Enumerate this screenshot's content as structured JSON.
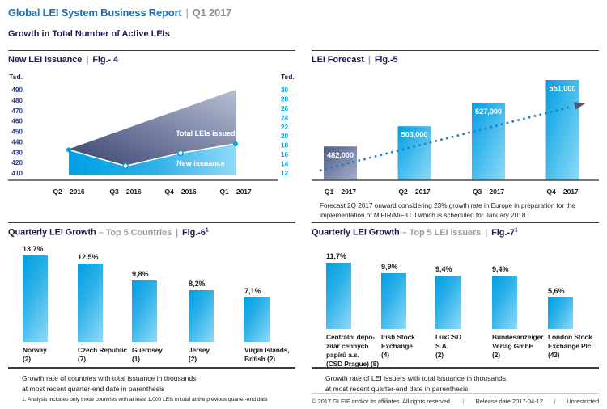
{
  "ui": {
    "pipe": "|"
  },
  "header": {
    "title": "Global LEI System Business Report",
    "period": "Q1 2017",
    "subtitle": "Growth in Total Number of Active LEIs"
  },
  "colors": {
    "brand_blue": "#1d71b8",
    "bright_blue": "#00a0e4",
    "navy": "#1b1b4e",
    "gray_label": "#9d9d9c",
    "dark_area_start": "#3a4371",
    "dark_area_end": "#b7bed4",
    "bar_gradient_start": "#009fe3",
    "bar_gradient_end": "#8edaf8"
  },
  "chart_data": [
    {
      "id": "fig4",
      "type": "area",
      "title": "New LEI Issuance",
      "fig_label": "Fig.- 4",
      "axis_unit_left": "Tsd.",
      "axis_unit_right": "Tsd.",
      "x": [
        "Q2 – 2016",
        "Q3 – 2016",
        "Q4 – 2016",
        "Q1 – 2017"
      ],
      "series": [
        {
          "name": "Total LEIs issued",
          "axis": "left",
          "values": [
            433,
            452,
            471,
            490
          ]
        },
        {
          "name": "New issuance",
          "axis": "right",
          "values": [
            17,
            13.5,
            16.3,
            18.3
          ]
        }
      ],
      "left_ticks": [
        490,
        480,
        470,
        460,
        450,
        440,
        430,
        420,
        410
      ],
      "right_ticks": [
        30,
        28,
        26,
        24,
        22,
        20,
        18,
        16,
        14,
        12
      ],
      "left_range": [
        410,
        490
      ],
      "right_range": [
        12,
        30
      ],
      "legend_position": "inside"
    },
    {
      "id": "fig5",
      "type": "bar",
      "title": "LEI Forecast",
      "fig_label": "Fig.-5",
      "categories": [
        "Q1 – 2017",
        "Q2 – 2017",
        "Q3 – 2017",
        "Q4 – 2017"
      ],
      "values": [
        482000,
        503000,
        527000,
        551000
      ],
      "value_labels": [
        "482,000",
        "503,000",
        "527,000",
        "551,000"
      ],
      "bar_styles": [
        "actual",
        "forecast",
        "forecast",
        "forecast"
      ],
      "trend_arrow": true,
      "ylim": [
        447000,
        551000
      ],
      "note": "Forecast 2Q 2017 onward considering 23% growth rate in Europe in preparation for the implementation of MiFIR/MiFID II which is scheduled for January 2018"
    },
    {
      "id": "fig6",
      "type": "bar",
      "title": "Quarterly LEI Growth",
      "subtitle": "– Top 5 Countries",
      "fig_label": "Fig.-6",
      "fig_sup": "1",
      "values": [
        13.7,
        12.5,
        9.8,
        8.2,
        7.1
      ],
      "value_labels": [
        "13,7%",
        "12,5%",
        "9,8%",
        "8,2%",
        "7,1%"
      ],
      "categories": [
        [
          "Norway",
          "(2)"
        ],
        [
          "Czech Republic",
          "(7)"
        ],
        [
          "Guernsey",
          "(1)"
        ],
        [
          "Jersey",
          "(2)"
        ],
        [
          "Virgin Islands,",
          "British (2)"
        ]
      ],
      "caption": "Growth rate of countries with total issuance in thousands\nat most recent quarter-end date in parenthesis",
      "footnote": "1. Analysis includes only those countries with at least 1,000 LEIs in total at the previous quarter-end date"
    },
    {
      "id": "fig7",
      "type": "bar",
      "title": "Quarterly LEI Growth",
      "subtitle": "– Top 5 LEI issuers",
      "fig_label": "Fig.-7",
      "fig_sup": "1",
      "values": [
        11.7,
        9.9,
        9.4,
        9.4,
        5.6
      ],
      "value_labels": [
        "11,7%",
        "9,9%",
        "9,4%",
        "9,4%",
        "5,6%"
      ],
      "categories": [
        [
          "Centrální depo-",
          "zitář cenných",
          "papírů a.s.",
          "(CSD Prague) (8)"
        ],
        [
          "Irish Stock",
          "Exchange",
          "(4)"
        ],
        [
          "LuxCSD",
          "S.A.",
          "(2)"
        ],
        [
          "Bundesanzeiger",
          "Verlag GmbH",
          "(2)"
        ],
        [
          "London Stock",
          "Exchange Plc",
          "(43)"
        ]
      ],
      "caption": "Growth rate of LEI issuers with total issuance in thousands\nat most recent quarter-end date in parenthesis"
    }
  ],
  "footer": {
    "copyright": "© 2017 GLEIF and/or its affiliates. All rights reserved.",
    "release": "Release date 2017-04-12",
    "classification": "Unrestricted"
  }
}
